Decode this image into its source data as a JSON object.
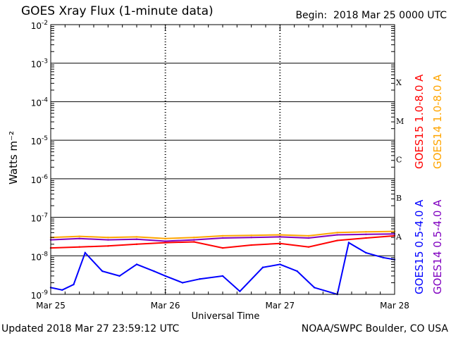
{
  "header": {
    "title": "GOES Xray Flux (1-minute data)",
    "begin_label": "Begin:",
    "begin_value": "2018 Mar 25 0000 UTC"
  },
  "footer": {
    "updated": "Updated 2018 Mar 27 23:59:12 UTC",
    "credit": "NOAA/SWPC Boulder, CO USA"
  },
  "chart_data": {
    "type": "line",
    "title": "GOES Xray Flux (1-minute data)",
    "xlabel": "Universal Time",
    "ylabel": "Watts m⁻²",
    "yscale": "log",
    "ylim": [
      1e-09,
      0.01
    ],
    "xlim": [
      0,
      3
    ],
    "x_ticks": [
      {
        "value": 0,
        "label": "Mar 25"
      },
      {
        "value": 1,
        "label": "Mar 26"
      },
      {
        "value": 2,
        "label": "Mar 27"
      },
      {
        "value": 3,
        "label": "Mar 28"
      }
    ],
    "y_ticks": [
      {
        "exp": -2,
        "label": "10",
        "sup": "-2"
      },
      {
        "exp": -3,
        "label": "10",
        "sup": "-3"
      },
      {
        "exp": -4,
        "label": "10",
        "sup": "-4"
      },
      {
        "exp": -5,
        "label": "10",
        "sup": "-5"
      },
      {
        "exp": -6,
        "label": "10",
        "sup": "-6"
      },
      {
        "exp": -7,
        "label": "10",
        "sup": "-7"
      },
      {
        "exp": -8,
        "label": "10",
        "sup": "-8"
      },
      {
        "exp": -9,
        "label": "10",
        "sup": "-9"
      }
    ],
    "flare_classes": [
      {
        "label": "X",
        "exp": -3.5
      },
      {
        "label": "M",
        "exp": -4.5
      },
      {
        "label": "C",
        "exp": -5.5
      },
      {
        "label": "B",
        "exp": -6.5
      },
      {
        "label": "A",
        "exp": -7.5
      }
    ],
    "grid": true,
    "legend": [
      {
        "name": "GOES15 1.0-8.0 A",
        "color": "#ff0000"
      },
      {
        "name": "GOES14 1.0-8.0 A",
        "color": "#ffa500"
      },
      {
        "name": "GOES15 0.5-4.0 A",
        "color": "#0000ff"
      },
      {
        "name": "GOES14 0.5-4.0 A",
        "color": "#8000c0"
      }
    ],
    "series": [
      {
        "name": "GOES14 1.0-8.0 A",
        "color": "#ffa500",
        "x": [
          0,
          0.25,
          0.5,
          0.75,
          1.0,
          1.25,
          1.5,
          1.75,
          2.0,
          2.25,
          2.5,
          2.75,
          3.0
        ],
        "y": [
          3e-08,
          3.2e-08,
          3e-08,
          3.1e-08,
          2.8e-08,
          3e-08,
          3.3e-08,
          3.4e-08,
          3.5e-08,
          3.3e-08,
          4e-08,
          4.2e-08,
          4.3e-08
        ]
      },
      {
        "name": "GOES15 1.0-8.0 A",
        "color": "#ff0000",
        "x": [
          0,
          0.25,
          0.5,
          0.75,
          1.0,
          1.25,
          1.5,
          1.75,
          2.0,
          2.25,
          2.5,
          2.75,
          3.0
        ],
        "y": [
          1.6e-08,
          1.7e-08,
          1.8e-08,
          2e-08,
          2.2e-08,
          2.3e-08,
          1.6e-08,
          1.9e-08,
          2.1e-08,
          1.7e-08,
          2.5e-08,
          2.9e-08,
          3.3e-08
        ]
      },
      {
        "name": "GOES14 0.5-4.0 A",
        "color": "#8000c0",
        "x": [
          0,
          0.25,
          0.5,
          0.75,
          1.0,
          1.25,
          1.5,
          1.75,
          2.0,
          2.25,
          2.5,
          2.75,
          3.0
        ],
        "y": [
          2.6e-08,
          2.8e-08,
          2.6e-08,
          2.7e-08,
          2.4e-08,
          2.6e-08,
          2.9e-08,
          3e-08,
          3.1e-08,
          2.9e-08,
          3.5e-08,
          3.6e-08,
          3.7e-08
        ]
      },
      {
        "name": "GOES15 0.5-4.0 A",
        "color": "#0000ff",
        "x": [
          0,
          0.1,
          0.2,
          0.3,
          0.45,
          0.6,
          0.75,
          0.9,
          1.0,
          1.15,
          1.3,
          1.5,
          1.65,
          1.85,
          2.0,
          2.15,
          2.3,
          2.5,
          2.6,
          2.75,
          2.9,
          3.0
        ],
        "y": [
          1.5e-09,
          1.3e-09,
          1.8e-09,
          1.2e-08,
          4e-09,
          3e-09,
          6e-09,
          4e-09,
          3e-09,
          2e-09,
          2.5e-09,
          3e-09,
          1.2e-09,
          5e-09,
          6e-09,
          4e-09,
          1.5e-09,
          1e-09,
          2.2e-08,
          1.2e-08,
          9e-09,
          8e-09
        ]
      }
    ]
  }
}
